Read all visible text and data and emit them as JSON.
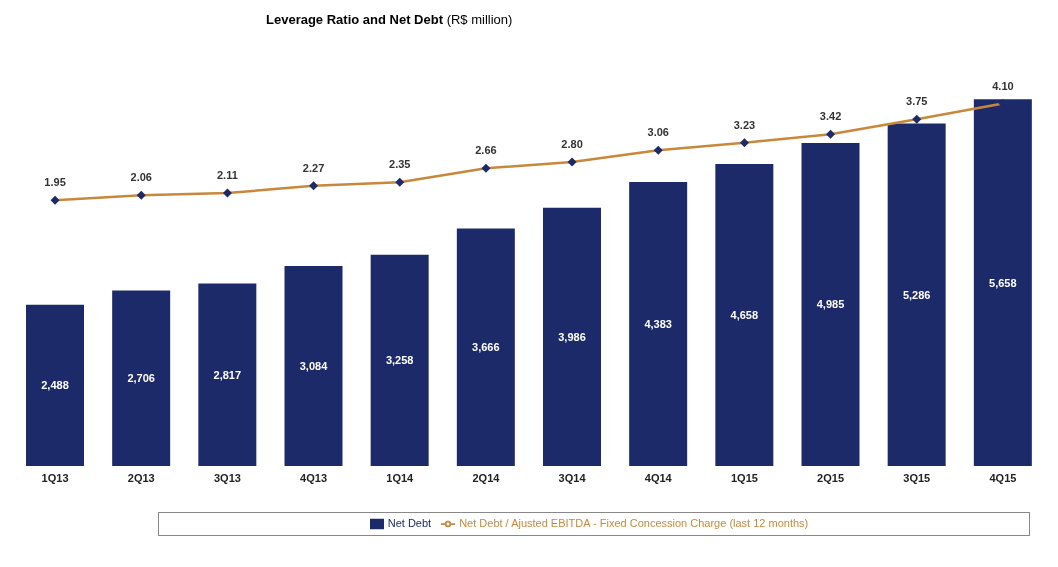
{
  "chart_data": {
    "type": "bar",
    "title": "Leverage Ratio and Net Debt",
    "subtitle": "(R$ million)",
    "categories": [
      "1Q13",
      "2Q13",
      "3Q13",
      "4Q13",
      "1Q14",
      "2Q14",
      "3Q14",
      "4Q14",
      "1Q15",
      "2Q15",
      "3Q15",
      "4Q15"
    ],
    "series": [
      {
        "name": "Net Debt",
        "color": "#1c2a6a",
        "values": [
          2488,
          2706,
          2817,
          3084,
          3258,
          3666,
          3986,
          4383,
          4658,
          4985,
          5286,
          5658
        ],
        "value_labels": [
          "2,488",
          "2,706",
          "2,817",
          "3,084",
          "3,258",
          "3,666",
          "3,986",
          "4,383",
          "4,658",
          "4,985",
          "5,286",
          "5,658"
        ]
      },
      {
        "name": "Net Debt / Ajusted EBITDA - Fixed Concession Charge (last 12 months)",
        "type": "line",
        "axis": "y2",
        "color": "#c8883c",
        "values": [
          1.95,
          2.06,
          2.11,
          2.27,
          2.35,
          2.66,
          2.8,
          3.06,
          3.23,
          3.42,
          3.75,
          4.1
        ],
        "value_labels": [
          "1.95",
          "2.06",
          "2.11",
          "2.27",
          "2.35",
          "2.66",
          "2.80",
          "3.06",
          "3.23",
          "3.42",
          "3.75",
          "4.10"
        ]
      }
    ],
    "marker": "diamond",
    "legend": "bottom"
  }
}
